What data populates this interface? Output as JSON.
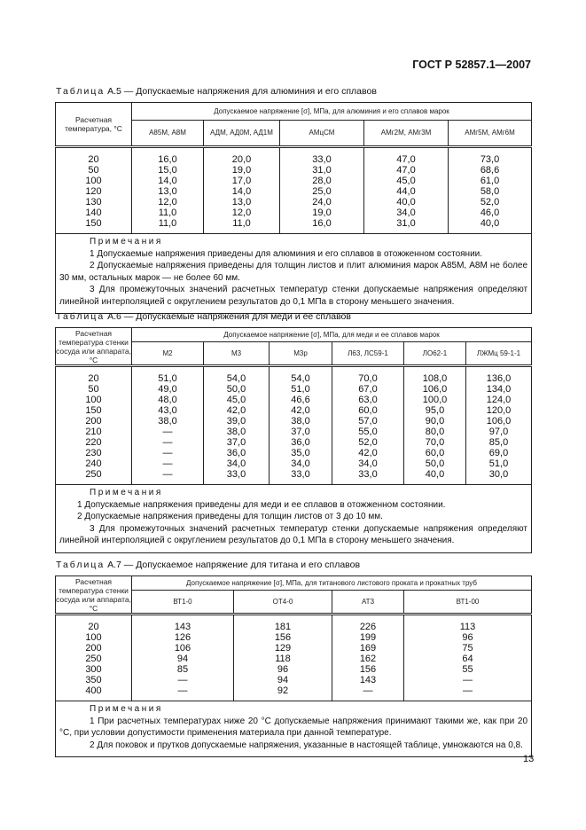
{
  "header": {
    "doc_id": "ГОСТ Р 52857.1—2007"
  },
  "tables": [
    {
      "caption_prefix": "Таблица",
      "caption": "А.5 — Допускаемые напряжения для алюминия и его сплавов",
      "row_header": "Расчетная температура, °С",
      "group_header": "Допускаемое напряжение [σ], МПа, для алюминия и его сплавов марок",
      "columns": [
        "А85М, А8М",
        "АДМ, АД0М, АД1М",
        "АМцСМ",
        "АМг2М, АМг3М",
        "АМг5М, АМг6М"
      ],
      "rows": [
        [
          "20",
          "16,0",
          "20,0",
          "33,0",
          "47,0",
          "73,0"
        ],
        [
          "50",
          "15,0",
          "19,0",
          "31,0",
          "47,0",
          "68,6"
        ],
        [
          "100",
          "14,0",
          "17,0",
          "28,0",
          "45,0",
          "61,0"
        ],
        [
          "120",
          "13,0",
          "14,0",
          "25,0",
          "44,0",
          "58,0"
        ],
        [
          "130",
          "12,0",
          "13,0",
          "24,0",
          "40,0",
          "52,0"
        ],
        [
          "140",
          "11,0",
          "12,0",
          "19,0",
          "34,0",
          "46,0"
        ],
        [
          "150",
          "11,0",
          "11,0",
          "16,0",
          "31,0",
          "40,0"
        ]
      ],
      "notes_title": "Примечания",
      "notes": [
        "1 Допускаемые напряжения  приведены для алюминия и его сплавов в отожженном состоянии.",
        "2 Допускаемые напряжения приведены для  толщин листов и плит  алюминия марок А85М, А8М не более 30 мм, остальных марок — не более 60 мм.",
        "3 Для промежуточных значений расчетных температур стенки допускаемые напряжения определяют линейной  интерполяцией с округлением результатов  до 0,1 МПа в сторону  меньшего  значения."
      ]
    },
    {
      "caption_prefix": "Таблица",
      "caption": "А.6 — Допускаемые напряжения для меди и ее сплавов",
      "row_header": "Расчетная температура стенки сосуда или аппарата, °С",
      "group_header": "Допускаемое напряжение [σ], МПа, для меди и ее сплавов марок",
      "columns": [
        "М2",
        "М3",
        "М3р",
        "Л63, ЛС59-1",
        "ЛО62-1",
        "ЛЖМц 59-1-1"
      ],
      "rows": [
        [
          "20",
          "51,0",
          "54,0",
          "54,0",
          "70,0",
          "108,0",
          "136,0"
        ],
        [
          "50",
          "49,0",
          "50,0",
          "51,0",
          "67,0",
          "106,0",
          "134,0"
        ],
        [
          "100",
          "48,0",
          "45,0",
          "46,6",
          "63,0",
          "100,0",
          "124,0"
        ],
        [
          "150",
          "43,0",
          "42,0",
          "42,0",
          "60,0",
          "95,0",
          "120,0"
        ],
        [
          "200",
          "38,0",
          "39,0",
          "38,0",
          "57,0",
          "90,0",
          "106,0"
        ],
        [
          "210",
          "—",
          "38,0",
          "37,0",
          "55,0",
          "80,0",
          "97,0"
        ],
        [
          "220",
          "—",
          "37,0",
          "36,0",
          "52,0",
          "70,0",
          "85,0"
        ],
        [
          "230",
          "—",
          "36,0",
          "35,0",
          "42,0",
          "60,0",
          "69,0"
        ],
        [
          "240",
          "—",
          "34,0",
          "34,0",
          "34,0",
          "50,0",
          "51,0"
        ],
        [
          "250",
          "—",
          "33,0",
          "33,0",
          "33,0",
          "40,0",
          "30,0"
        ]
      ],
      "notes_title": "Примечания",
      "notes": [
        "1  Допускаемые напряжения приведены для меди и ее сплавов в отожженном состоянии.",
        "2  Допускаемые напряжения приведены для толщин листов от 3 до 10 мм.",
        "3 Для промежуточных значений расчетных температур стенки допускаемые напряжения определяют линейной интерполяцией с округлением результатов до 0,1 МПа в сторону меньшего значения."
      ]
    },
    {
      "caption_prefix": "Таблица",
      "caption": "А.7 — Допускаемое напряжение для титана  и его сплавов",
      "row_header": "Расчетная температура стенки сосуда или аппарата, °С",
      "group_header": "Допускаемое напряжение [σ], МПа, для титанового листового  проката  и  прокатных  труб",
      "columns": [
        "ВТ1-0",
        "ОТ4-0",
        "АТ3",
        "ВТ1-00"
      ],
      "rows": [
        [
          "20",
          "143",
          "181",
          "226",
          "113"
        ],
        [
          "100",
          "126",
          "156",
          "199",
          "96"
        ],
        [
          "200",
          "106",
          "129",
          "169",
          "75"
        ],
        [
          "250",
          "94",
          "118",
          "162",
          "64"
        ],
        [
          "300",
          "85",
          "96",
          "156",
          "55"
        ],
        [
          "350",
          "—",
          "94",
          "143",
          "—"
        ],
        [
          "400",
          "—",
          "92",
          "—",
          "—"
        ]
      ],
      "notes_title": "Примечания",
      "notes": [
        "1 При расчетных  температурах  ниже 20 °С  допускаемые  напряжения  принимают такими же, как при 20 °С, при  условии допустимости применения материала при данной температуре.",
        "2 Для поковок и прутков допускаемые напряжения, указанные в настоящей таблице,  умножаются на  0,8."
      ]
    }
  ],
  "footer": {
    "page_number": "13"
  }
}
